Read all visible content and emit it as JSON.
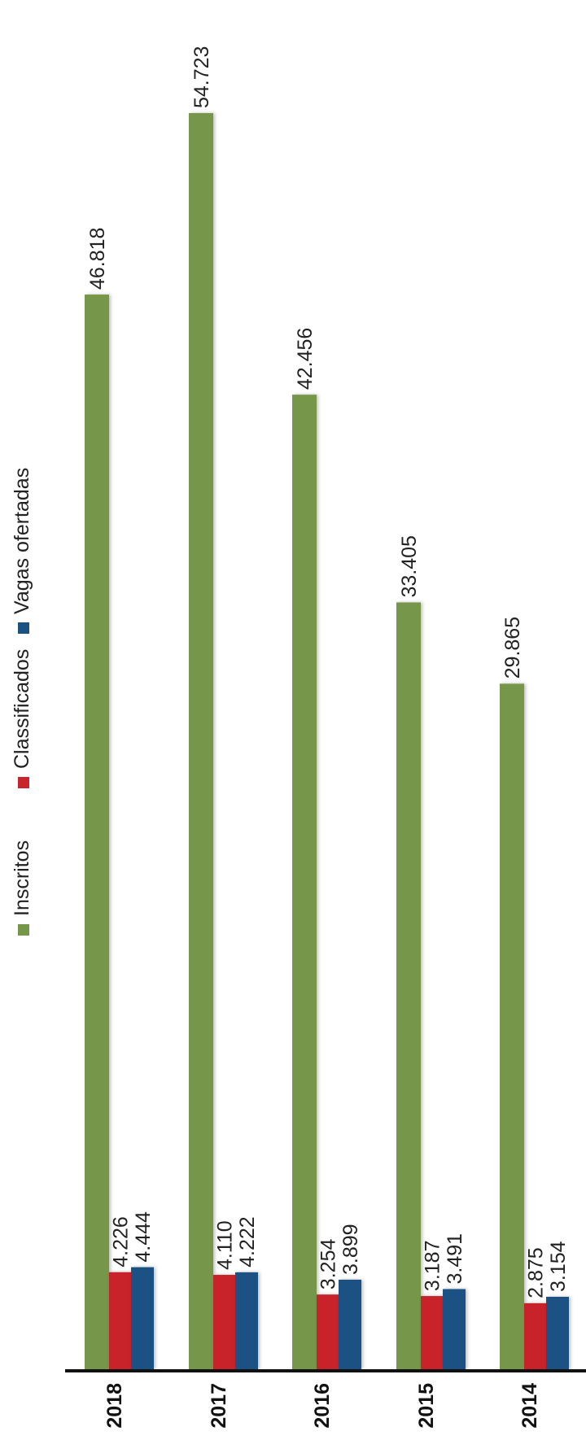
{
  "chart_data": {
    "type": "bar",
    "orientation": "vertical-bars-rotated-labels",
    "categories": [
      "2018",
      "2017",
      "2016",
      "2015",
      "2014"
    ],
    "series": [
      {
        "name": "Inscritos",
        "color": "#76964a",
        "values": [
          46818,
          54723,
          42456,
          33405,
          29865
        ],
        "labels": [
          "46.818",
          "54.723",
          "42.456",
          "33.405",
          "29.865"
        ]
      },
      {
        "name": "Classificados",
        "color": "#c8242b",
        "values": [
          4226,
          4110,
          3254,
          3187,
          2875
        ],
        "labels": [
          "4.226",
          "4.110",
          "3.254",
          "3.187",
          "2.875"
        ]
      },
      {
        "name": "Vagas ofertadas",
        "color": "#1c5184",
        "values": [
          4444,
          4222,
          3899,
          3491,
          3154
        ],
        "labels": [
          "4.444",
          "4.222",
          "3.899",
          "3.491",
          "3.154"
        ]
      }
    ],
    "ylim": [
      0,
      56000
    ],
    "legend_position": "top-left",
    "grid": false
  }
}
